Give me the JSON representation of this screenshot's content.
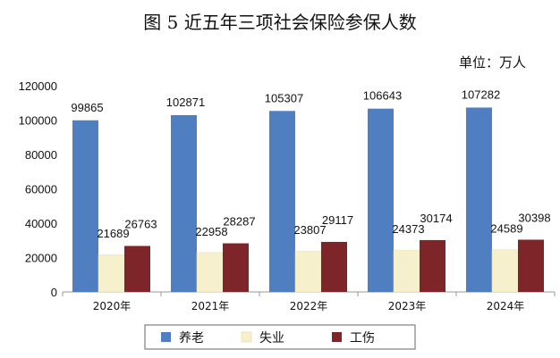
{
  "chart_data": {
    "type": "bar",
    "title": "图 5    近五年三项社会保险参保人数",
    "unit_label": "单位：万人",
    "categories": [
      "2020年",
      "2021年",
      "2022年",
      "2023年",
      "2024年"
    ],
    "ylim": [
      0,
      120000
    ],
    "yticks": [
      "0",
      "20000",
      "40000",
      "60000",
      "80000",
      "100000",
      "120000"
    ],
    "grid": false,
    "legend_position": "bottom",
    "series": [
      {
        "name": "养老",
        "color": "#4f7ec1",
        "values": [
          99865,
          102871,
          105307,
          106643,
          107282
        ],
        "labels": [
          "99865",
          "102871",
          "105307",
          "106643",
          "107282"
        ]
      },
      {
        "name": "失业",
        "color": "#f6f0cc",
        "values": [
          21689,
          22958,
          23807,
          24373,
          24589
        ],
        "labels": [
          "21689",
          "22958",
          "23807",
          "24373",
          "24589"
        ]
      },
      {
        "name": "工伤",
        "color": "#7d2528",
        "values": [
          26763,
          28287,
          29117,
          30174,
          30398
        ],
        "labels": [
          "26763",
          "28287",
          "29117",
          "30174",
          "30398"
        ]
      }
    ]
  }
}
